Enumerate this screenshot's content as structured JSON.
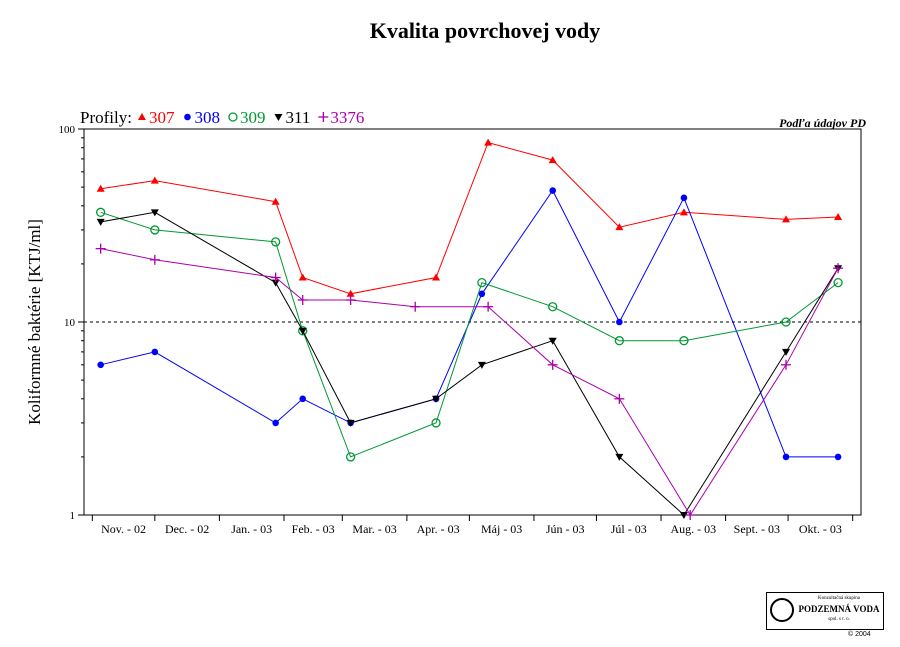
{
  "chart_data": {
    "type": "line",
    "title": "Kvalita povrchovej vody",
    "ylabel": "Koliformné baktérie [KTJ/ml]",
    "xlabel": "",
    "source_note": "Podľa údajov PD",
    "legend_label": "Profily:",
    "legend_placement": "top-left",
    "y_scale": "log",
    "ylim": [
      1,
      100
    ],
    "y_ticks": [
      1,
      10,
      100
    ],
    "threshold_line": 10,
    "grid": false,
    "x_tick_labels": [
      "Nov. - 02",
      "Dec. - 02",
      "Jan. - 03",
      "Feb. - 03",
      "Mar. - 03",
      "Apr. - 03",
      "Máj - 03",
      "Jún - 03",
      "Júl - 03",
      "Aug. - 03",
      "Sept. - 03",
      "Okt. - 03"
    ],
    "series": [
      {
        "name": "307",
        "color": "#ff0000",
        "marker": "triangle-up",
        "points": [
          [
            "2002-11-05",
            49
          ],
          [
            "2002-12-01",
            54
          ],
          [
            "2003-01-28",
            42
          ],
          [
            "2003-02-10",
            17
          ],
          [
            "2003-03-05",
            14
          ],
          [
            "2003-04-15",
            17
          ],
          [
            "2003-05-10",
            85
          ],
          [
            "2003-06-10",
            69
          ],
          [
            "2003-07-12",
            31
          ],
          [
            "2003-08-12",
            37
          ],
          [
            "2003-09-30",
            34
          ],
          [
            "2003-10-25",
            35
          ]
        ]
      },
      {
        "name": "308",
        "color": "#0000ff",
        "marker": "circle-filled",
        "points": [
          [
            "2002-11-05",
            6
          ],
          [
            "2002-12-01",
            7
          ],
          [
            "2003-01-28",
            3
          ],
          [
            "2003-02-10",
            4
          ],
          [
            "2003-03-05",
            3
          ],
          [
            "2003-04-15",
            4
          ],
          [
            "2003-05-07",
            14
          ],
          [
            "2003-06-10",
            48
          ],
          [
            "2003-07-12",
            10
          ],
          [
            "2003-08-12",
            44
          ],
          [
            "2003-09-30",
            2
          ],
          [
            "2003-10-25",
            2
          ]
        ]
      },
      {
        "name": "309",
        "color": "#009933",
        "marker": "circle-open",
        "points": [
          [
            "2002-11-05",
            37
          ],
          [
            "2002-12-01",
            30
          ],
          [
            "2003-01-28",
            26
          ],
          [
            "2003-02-10",
            9
          ],
          [
            "2003-03-05",
            2
          ],
          [
            "2003-04-15",
            3
          ],
          [
            "2003-05-07",
            16
          ],
          [
            "2003-06-10",
            12
          ],
          [
            "2003-07-12",
            8
          ],
          [
            "2003-08-12",
            8
          ],
          [
            "2003-09-30",
            10
          ],
          [
            "2003-10-25",
            16
          ]
        ]
      },
      {
        "name": "311",
        "color": "#000000",
        "marker": "triangle-down",
        "points": [
          [
            "2002-11-05",
            33
          ],
          [
            "2002-12-01",
            37
          ],
          [
            "2003-01-28",
            16
          ],
          [
            "2003-02-10",
            9
          ],
          [
            "2003-03-05",
            3
          ],
          [
            "2003-04-15",
            4
          ],
          [
            "2003-05-07",
            6
          ],
          [
            "2003-06-10",
            8
          ],
          [
            "2003-07-12",
            2
          ],
          [
            "2003-08-12",
            1
          ],
          [
            "2003-09-30",
            7
          ],
          [
            "2003-10-25",
            19
          ]
        ]
      },
      {
        "name": "3376",
        "color": "#aa00aa",
        "marker": "plus",
        "points": [
          [
            "2002-11-05",
            24
          ],
          [
            "2002-12-01",
            21
          ],
          [
            "2003-01-28",
            17
          ],
          [
            "2003-02-10",
            13
          ],
          [
            "2003-03-05",
            13
          ],
          [
            "2003-04-05",
            12
          ],
          [
            "2003-05-10",
            12
          ],
          [
            "2003-06-10",
            6
          ],
          [
            "2003-07-12",
            4
          ],
          [
            "2003-08-15",
            1
          ],
          [
            "2003-09-30",
            6
          ],
          [
            "2003-10-25",
            19
          ]
        ]
      }
    ]
  },
  "logo": {
    "line1": "Konzultačná skupina",
    "line2": "PODZEMNÁ VODA",
    "line3": "spol. s r. o.",
    "copyright": "© 2004"
  }
}
